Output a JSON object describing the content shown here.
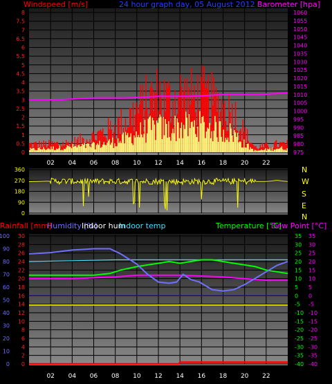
{
  "header": {
    "wind_title": "Windspeed [m/s]",
    "date_title": "24 hour graph day, 05 August 2012",
    "baro_title": "Barometer [hpa]"
  },
  "compass": [
    "N",
    "W",
    "S",
    "E",
    "N"
  ],
  "bottom_titles": {
    "rain": "Rainfall [mm]",
    "humidity": "Humidity [%]",
    "indoor_hum": "Indoor hum",
    "indoor_temp": "Indoor temp",
    "temperature": "Temperature [°C]",
    "dewpoint": "Dew Point [°C]"
  },
  "colors": {
    "wind": "#ff0000",
    "gust": "#ff0000",
    "avg_wind": "#ffff80",
    "barometer": "#ff00ff",
    "direction": "#ffff00",
    "rain": "#ff0000",
    "humidity": "#7070ff",
    "indoor_hum": "#ffff00",
    "indoor_temp": "#40e0ff",
    "temperature": "#00ff00",
    "dewpoint": "#ff00ff",
    "zero_line": "#0000ff"
  },
  "chart_data": [
    {
      "type": "line",
      "name": "wind",
      "x_ticks": [
        "02",
        "04",
        "06",
        "08",
        "10",
        "12",
        "14",
        "16",
        "18",
        "20",
        "22"
      ],
      "y_left_ticks": [
        "0",
        "0.5",
        "1",
        "1.5",
        "2",
        "2.5",
        "3",
        "3.5",
        "4",
        "4.5",
        "5",
        "5.5",
        "6",
        "6.5",
        "7",
        "7.5",
        "8"
      ],
      "y_right_ticks": [
        "975",
        "980",
        "985",
        "990",
        "995",
        "1000",
        "1005",
        "1010",
        "1015",
        "1020",
        "1025",
        "1030",
        "1035",
        "1040",
        "1045",
        "1050",
        "1055",
        "1060"
      ],
      "ylim_left": [
        0,
        8
      ],
      "ylim_right": [
        975,
        1060
      ],
      "xlim": [
        0,
        24
      ],
      "series": [
        {
          "x": [
            0,
            2,
            4,
            6,
            8,
            9,
            10,
            11,
            12,
            13,
            14,
            15,
            16,
            17,
            18,
            19,
            20,
            21,
            22,
            23,
            24
          ],
          "values": [
            0.5,
            0.5,
            0.6,
            1.0,
            1.6,
            2.0,
            2.6,
            3.2,
            3.6,
            3.2,
            3.6,
            3.4,
            3.5,
            3.2,
            2.8,
            2.5,
            1.2,
            0.3,
            0.4,
            0.5,
            0.5
          ]
        },
        {
          "x": [
            0,
            2,
            4,
            6,
            8,
            9,
            10,
            11,
            12,
            13,
            14,
            15,
            16,
            17,
            18,
            19,
            20,
            21,
            22,
            23,
            24
          ],
          "values": [
            0.2,
            0.3,
            0.4,
            0.5,
            0.8,
            1.0,
            1.4,
            1.7,
            1.9,
            1.7,
            2.0,
            1.9,
            2.0,
            1.8,
            1.6,
            1.4,
            0.6,
            0.1,
            0.2,
            0.3,
            0.3
          ]
        },
        {
          "name": "Barometer [hpa]",
          "x": [
            0,
            3,
            6,
            9,
            12,
            15,
            18,
            21,
            24
          ],
          "values": [
            1007,
            1007,
            1008,
            1008,
            1009,
            1009,
            1010,
            1010,
            1011
          ]
        }
      ]
    },
    {
      "type": "line",
      "name": "wind_direction",
      "y_ticks": [
        "0",
        "90",
        "180",
        "270",
        "360"
      ],
      "ylim": [
        0,
        360
      ],
      "xlim": [
        0,
        24
      ],
      "series": [
        {
          "x": [
            0,
            2,
            4,
            6,
            8,
            10,
            12,
            14,
            16,
            18,
            20,
            22,
            23,
            24
          ],
          "values": [
            260,
            265,
            262,
            262,
            262,
            262,
            262,
            260,
            262,
            262,
            262,
            262,
            270,
            262
          ]
        }
      ]
    },
    {
      "type": "line",
      "name": "temperature_humidity",
      "x_ticks": [
        "02",
        "04",
        "06",
        "08",
        "10",
        "12",
        "14",
        "16",
        "18",
        "20",
        "22"
      ],
      "y_hum_ticks": [
        "0",
        "10",
        "20",
        "30",
        "40",
        "50",
        "60",
        "70",
        "80",
        "90",
        "100"
      ],
      "y_rain_ticks": [
        "0",
        "2",
        "4",
        "6",
        "8",
        "10",
        "12",
        "14",
        "16",
        "18",
        "20",
        "22",
        "24",
        "26",
        "28",
        "30"
      ],
      "y_temp_ticks": [
        "-40",
        "-35",
        "-30",
        "-25",
        "-20",
        "-15",
        "-10",
        "-5",
        "0",
        "5",
        "10",
        "15",
        "20",
        "25",
        "30",
        "35"
      ],
      "ylim_hum": [
        0,
        100
      ],
      "ylim_rain": [
        0,
        30
      ],
      "ylim_temp": [
        -40,
        35
      ],
      "xlim": [
        0,
        24
      ],
      "series": [
        {
          "name": "Humidity [%]",
          "x": [
            0,
            2,
            4,
            6,
            7.5,
            8.5,
            10,
            11,
            12,
            13,
            13.7,
            14.3,
            15,
            15.8,
            17,
            18,
            19,
            20,
            21,
            22,
            23,
            24
          ],
          "values": [
            86,
            87,
            89,
            90,
            90,
            86,
            78,
            70,
            64,
            63,
            64,
            70,
            66,
            64,
            58,
            57,
            58,
            62,
            67,
            72,
            77,
            80
          ]
        },
        {
          "name": "Indoor hum",
          "x": [
            0,
            24
          ],
          "values": [
            46,
            46
          ]
        },
        {
          "name": "Indoor temp",
          "x": [
            0,
            4,
            8,
            12,
            16,
            20,
            24
          ],
          "values": [
            20,
            20.5,
            21,
            21,
            21,
            21,
            21
          ]
        },
        {
          "name": "Temperature [°C]",
          "x": [
            0,
            2,
            4,
            6,
            7.5,
            8.5,
            10,
            11,
            12,
            13,
            14,
            15,
            16,
            17,
            18,
            19,
            20,
            21,
            22,
            23,
            24
          ],
          "values": [
            12,
            12,
            12,
            12,
            13,
            15,
            17,
            18,
            19,
            20,
            19,
            20,
            21,
            21,
            20,
            19,
            18,
            17,
            15,
            14,
            13
          ]
        },
        {
          "name": "Dew Point [°C]",
          "x": [
            0,
            2,
            4,
            6,
            8,
            10,
            12,
            14,
            16,
            18,
            20,
            22,
            24
          ],
          "values": [
            10,
            10,
            10,
            10.5,
            11,
            12,
            12,
            12,
            11.5,
            11,
            10,
            9,
            9
          ]
        },
        {
          "name": "Rainfall [mm]",
          "x": [
            0,
            13.9,
            14.0,
            24
          ],
          "values": [
            0,
            0,
            0.4,
            0.4
          ]
        }
      ]
    }
  ]
}
